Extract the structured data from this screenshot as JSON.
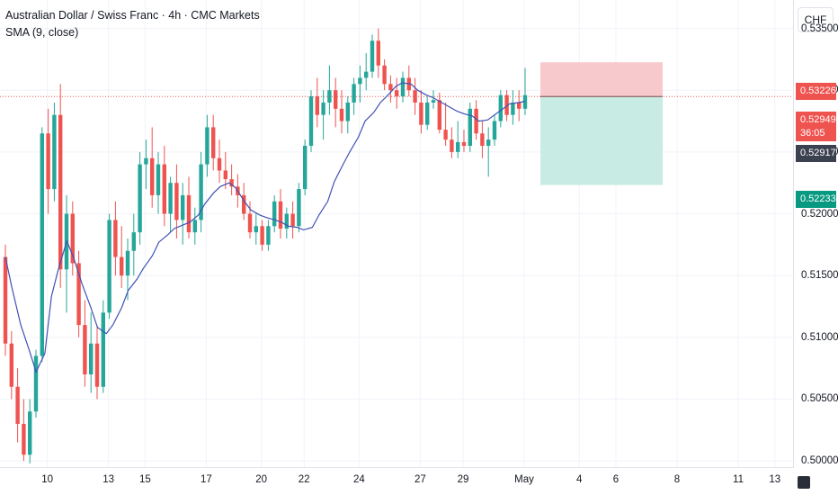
{
  "legend": {
    "title": "Australian Dollar / Swiss Franc · 4h · CMC Markets",
    "indicator": "SMA (9, close)"
  },
  "price_axis": {
    "currency": "CHF",
    "ticks": [
      "0.53500",
      "0.53000",
      "0.52500",
      "0.52000",
      "0.51500",
      "0.51000",
      "0.50500",
      "0.50000"
    ]
  },
  "badges": {
    "stop": "0.53226",
    "last_price": "0.52949",
    "countdown": "36:05",
    "sma": "0.52917",
    "target": "0.52233"
  },
  "time_axis": {
    "ticks": [
      "10",
      "13",
      "15",
      "17",
      "20",
      "22",
      "24",
      "27",
      "29",
      "May",
      "4",
      "6",
      "8",
      "11",
      "13"
    ]
  },
  "colors": {
    "up": "#26a69a",
    "down": "#ef5350",
    "sma": "#3f51b5",
    "stop_zone": "#f7c9cd",
    "target_zone": "#c8ebe4",
    "price_line": "#ef5350"
  },
  "chart_data": {
    "type": "candlestick",
    "symbol": "AUDCHF",
    "timeframe": "4h",
    "ylim": [
      0.4995,
      0.5373
    ],
    "last_price": 0.52949,
    "candles": [
      [
        0.5165,
        0.5175,
        0.5085,
        0.5095
      ],
      [
        0.5095,
        0.5105,
        0.505,
        0.506
      ],
      [
        0.506,
        0.5075,
        0.5015,
        0.503
      ],
      [
        0.503,
        0.505,
        0.5,
        0.5005
      ],
      [
        0.5005,
        0.505,
        0.4998,
        0.504
      ],
      [
        0.504,
        0.509,
        0.5035,
        0.5085
      ],
      [
        0.5085,
        0.527,
        0.508,
        0.5265
      ],
      [
        0.5265,
        0.5285,
        0.52,
        0.522
      ],
      [
        0.522,
        0.529,
        0.521,
        0.528
      ],
      [
        0.528,
        0.5305,
        0.514,
        0.5155
      ],
      [
        0.5155,
        0.5215,
        0.512,
        0.52
      ],
      [
        0.52,
        0.521,
        0.515,
        0.516
      ],
      [
        0.516,
        0.517,
        0.51,
        0.511
      ],
      [
        0.511,
        0.513,
        0.506,
        0.507
      ],
      [
        0.507,
        0.512,
        0.5055,
        0.5095
      ],
      [
        0.5095,
        0.511,
        0.505,
        0.506
      ],
      [
        0.506,
        0.513,
        0.5055,
        0.512
      ],
      [
        0.512,
        0.52,
        0.5115,
        0.5195
      ],
      [
        0.5195,
        0.521,
        0.515,
        0.5165
      ],
      [
        0.5165,
        0.519,
        0.514,
        0.515
      ],
      [
        0.515,
        0.518,
        0.513,
        0.517
      ],
      [
        0.517,
        0.52,
        0.515,
        0.5185
      ],
      [
        0.5185,
        0.525,
        0.5175,
        0.524
      ],
      [
        0.524,
        0.526,
        0.522,
        0.5245
      ],
      [
        0.5245,
        0.527,
        0.5205,
        0.5215
      ],
      [
        0.5215,
        0.525,
        0.52,
        0.524
      ],
      [
        0.524,
        0.5255,
        0.519,
        0.52
      ],
      [
        0.52,
        0.523,
        0.5185,
        0.5225
      ],
      [
        0.5225,
        0.524,
        0.518,
        0.5195
      ],
      [
        0.5195,
        0.5225,
        0.5175,
        0.5215
      ],
      [
        0.5215,
        0.523,
        0.518,
        0.5185
      ],
      [
        0.5185,
        0.5205,
        0.5175,
        0.5195
      ],
      [
        0.5195,
        0.525,
        0.5185,
        0.524
      ],
      [
        0.524,
        0.528,
        0.523,
        0.527
      ],
      [
        0.527,
        0.528,
        0.5235,
        0.5245
      ],
      [
        0.5245,
        0.526,
        0.5225,
        0.5235
      ],
      [
        0.5235,
        0.525,
        0.522,
        0.5228
      ],
      [
        0.5228,
        0.524,
        0.5215,
        0.5222
      ],
      [
        0.5222,
        0.5232,
        0.5205,
        0.5215
      ],
      [
        0.5215,
        0.5225,
        0.5195,
        0.52
      ],
      [
        0.52,
        0.521,
        0.518,
        0.5185
      ],
      [
        0.5185,
        0.52,
        0.5175,
        0.519
      ],
      [
        0.519,
        0.5195,
        0.517,
        0.5175
      ],
      [
        0.5175,
        0.5195,
        0.517,
        0.519
      ],
      [
        0.519,
        0.5215,
        0.5185,
        0.521
      ],
      [
        0.521,
        0.522,
        0.518,
        0.5188
      ],
      [
        0.5188,
        0.5205,
        0.518,
        0.52
      ],
      [
        0.52,
        0.521,
        0.518,
        0.519
      ],
      [
        0.519,
        0.5225,
        0.5185,
        0.522
      ],
      [
        0.522,
        0.526,
        0.5215,
        0.5255
      ],
      [
        0.5255,
        0.53,
        0.525,
        0.5295
      ],
      [
        0.5295,
        0.531,
        0.527,
        0.528
      ],
      [
        0.528,
        0.53,
        0.526,
        0.529
      ],
      [
        0.529,
        0.532,
        0.528,
        0.53
      ],
      [
        0.53,
        0.531,
        0.527,
        0.5285
      ],
      [
        0.5285,
        0.53,
        0.5265,
        0.5275
      ],
      [
        0.5275,
        0.5295,
        0.5265,
        0.529
      ],
      [
        0.529,
        0.531,
        0.528,
        0.5305
      ],
      [
        0.5305,
        0.532,
        0.529,
        0.531
      ],
      [
        0.531,
        0.533,
        0.53,
        0.5315
      ],
      [
        0.5315,
        0.5345,
        0.531,
        0.534
      ],
      [
        0.534,
        0.535,
        0.531,
        0.532
      ],
      [
        0.532,
        0.5325,
        0.53,
        0.5305
      ],
      [
        0.5305,
        0.5312,
        0.529,
        0.53
      ],
      [
        0.53,
        0.531,
        0.5285,
        0.5295
      ],
      [
        0.5295,
        0.5315,
        0.529,
        0.531
      ],
      [
        0.531,
        0.532,
        0.5295,
        0.53
      ],
      [
        0.53,
        0.531,
        0.528,
        0.529
      ],
      [
        0.529,
        0.53,
        0.5265,
        0.5272
      ],
      [
        0.5272,
        0.5295,
        0.5268,
        0.529
      ],
      [
        0.529,
        0.53,
        0.5285,
        0.5292
      ],
      [
        0.5292,
        0.5298,
        0.5265,
        0.5268
      ],
      [
        0.5268,
        0.529,
        0.5255,
        0.526
      ],
      [
        0.526,
        0.527,
        0.5245,
        0.525
      ],
      [
        0.525,
        0.5275,
        0.5245,
        0.5258
      ],
      [
        0.5258,
        0.5268,
        0.525,
        0.5255
      ],
      [
        0.5255,
        0.529,
        0.525,
        0.5285
      ],
      [
        0.5285,
        0.5292,
        0.526,
        0.5265
      ],
      [
        0.5265,
        0.5275,
        0.5245,
        0.5255
      ],
      [
        0.5255,
        0.527,
        0.523,
        0.526
      ],
      [
        0.526,
        0.528,
        0.5255,
        0.5275
      ],
      [
        0.5275,
        0.53,
        0.527,
        0.5296
      ],
      [
        0.5296,
        0.53,
        0.5275,
        0.528
      ],
      [
        0.528,
        0.53,
        0.5272,
        0.529
      ],
      [
        0.529,
        0.53,
        0.5275,
        0.5285
      ],
      [
        0.5285,
        0.5318,
        0.528,
        0.5296
      ]
    ],
    "sma": [
      [
        0,
        0.5165
      ],
      [
        3,
        0.514
      ],
      [
        7,
        0.511
      ],
      [
        11,
        0.5089
      ],
      [
        14,
        0.5072
      ],
      [
        18,
        0.5087
      ],
      [
        21,
        0.5133
      ],
      [
        24,
        0.5154
      ],
      [
        28,
        0.5178
      ],
      [
        31,
        0.5165
      ],
      [
        35,
        0.5143
      ],
      [
        39,
        0.5124
      ],
      [
        42,
        0.5108
      ],
      [
        46,
        0.5103
      ],
      [
        49,
        0.511
      ],
      [
        53,
        0.5124
      ],
      [
        56,
        0.5138
      ],
      [
        60,
        0.5147
      ],
      [
        63,
        0.5156
      ],
      [
        67,
        0.5166
      ],
      [
        70,
        0.5177
      ],
      [
        74,
        0.5183
      ],
      [
        77,
        0.5188
      ],
      [
        81,
        0.5191
      ],
      [
        84,
        0.5193
      ],
      [
        88,
        0.5199
      ],
      [
        91,
        0.5208
      ],
      [
        95,
        0.5217
      ],
      [
        98,
        0.5222
      ],
      [
        102,
        0.5225
      ],
      [
        105,
        0.5221
      ],
      [
        109,
        0.521
      ],
      [
        112,
        0.5203
      ],
      [
        116,
        0.5199
      ],
      [
        119,
        0.5197
      ],
      [
        123,
        0.5195
      ],
      [
        126,
        0.5193
      ],
      [
        129,
        0.519
      ],
      [
        133,
        0.5189
      ],
      [
        136,
        0.5187
      ],
      [
        140,
        0.5189
      ],
      [
        143,
        0.5199
      ],
      [
        147,
        0.521
      ],
      [
        150,
        0.5226
      ],
      [
        154,
        0.524
      ],
      [
        157,
        0.525
      ],
      [
        161,
        0.5262
      ],
      [
        164,
        0.5275
      ],
      [
        168,
        0.5282
      ],
      [
        171,
        0.529
      ],
      [
        175,
        0.5297
      ],
      [
        178,
        0.5303
      ],
      [
        181,
        0.5306
      ],
      [
        185,
        0.5305
      ],
      [
        188,
        0.53
      ],
      [
        192,
        0.5296
      ],
      [
        195,
        0.5294
      ],
      [
        199,
        0.529
      ],
      [
        202,
        0.5287
      ],
      [
        206,
        0.5283
      ],
      [
        209,
        0.5281
      ],
      [
        213,
        0.5279
      ],
      [
        216,
        0.5275
      ],
      [
        220,
        0.5276
      ],
      [
        223,
        0.528
      ],
      [
        227,
        0.5285
      ],
      [
        230,
        0.5289
      ],
      [
        234,
        0.529
      ],
      [
        237,
        0.5291
      ]
    ],
    "position": {
      "entry": 0.52949,
      "stop": 0.53226,
      "target": 0.52233,
      "sma_last": 0.52917
    }
  }
}
